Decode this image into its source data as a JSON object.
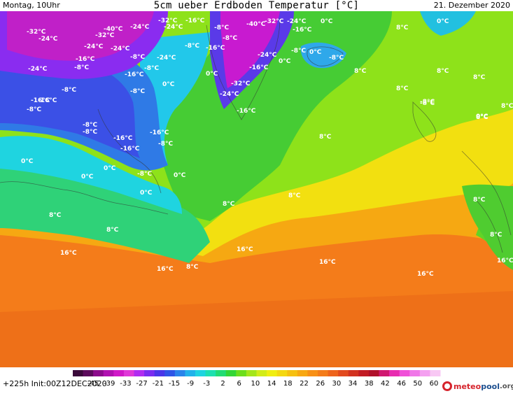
{
  "header": {
    "left": "Montag, 10Uhr",
    "center": "5cm ueber Erdboden Temperatur [°C]",
    "right": "21. Dezember 2020"
  },
  "footer": {
    "run_info": "+225h Init:00Z12DEC2020",
    "logo": {
      "part1": "meteo",
      "part2": "pool",
      "part3": ".org"
    }
  },
  "legend": {
    "ticks": [
      "-45",
      "-39",
      "-33",
      "-27",
      "-21",
      "-15",
      "-9",
      "-3",
      "2",
      "6",
      "10",
      "14",
      "18",
      "22",
      "26",
      "30",
      "34",
      "38",
      "42",
      "46",
      "50",
      "60"
    ],
    "colors": [
      "#3a0a3a",
      "#5c0b5c",
      "#8c0b8c",
      "#b010b0",
      "#d018c8",
      "#e038d8",
      "#b02cf0",
      "#7a2cf0",
      "#4a36e8",
      "#2f55e6",
      "#2a84ea",
      "#22b2ea",
      "#1fd4e0",
      "#1ee0b0",
      "#22dc74",
      "#33d636",
      "#6cde1c",
      "#a4e61a",
      "#d2ec18",
      "#f0ee10",
      "#f4d810",
      "#f6c010",
      "#f8a812",
      "#f89016",
      "#f47c1a",
      "#ee641c",
      "#e24a1e",
      "#d23220",
      "#c21c24",
      "#b0102a",
      "#d01870",
      "#e82cb0",
      "#f050d8",
      "#f078e8",
      "#f4a0f0",
      "#f8c8f4"
    ]
  },
  "map_labels": [
    {
      "text": "-32°C"
    },
    {
      "text": "-24°C"
    },
    {
      "text": "-40°C"
    },
    {
      "text": "-32°C"
    },
    {
      "text": "-24°C"
    },
    {
      "text": "-32°C"
    },
    {
      "text": "-16°C"
    },
    {
      "text": "-24°C"
    },
    {
      "text": "-8°C"
    },
    {
      "text": "-40°C"
    },
    {
      "text": "-32°C"
    },
    {
      "text": "-24°C"
    },
    {
      "text": "-16°C"
    },
    {
      "text": "0°C"
    },
    {
      "text": "8°C"
    },
    {
      "text": "0°C"
    },
    {
      "text": "-24°C"
    },
    {
      "text": "-24°C"
    },
    {
      "text": "-8°C"
    },
    {
      "text": "-16°C"
    },
    {
      "text": "-24°C"
    },
    {
      "text": "-8°C"
    },
    {
      "text": "-8°C"
    },
    {
      "text": "-24°C"
    },
    {
      "text": "-8°C"
    },
    {
      "text": "0°C"
    },
    {
      "text": "-8°C"
    },
    {
      "text": "0°C"
    },
    {
      "text": "-24°C"
    },
    {
      "text": "-8°C"
    },
    {
      "text": "-16°C"
    },
    {
      "text": "-8°C"
    },
    {
      "text": "-16°C"
    },
    {
      "text": "0°C"
    },
    {
      "text": "-16°C"
    },
    {
      "text": "8°C"
    },
    {
      "text": "8°C"
    },
    {
      "text": "8°C"
    },
    {
      "text": "-8°C"
    },
    {
      "text": "0°C"
    },
    {
      "text": "-32°C"
    },
    {
      "text": "-8°C"
    },
    {
      "text": "-24°C"
    },
    {
      "text": "-16°C"
    },
    {
      "text": "-8°C"
    },
    {
      "text": "8°C"
    },
    {
      "text": "-16°C"
    },
    {
      "text": "-8°C"
    },
    {
      "text": "-8°C"
    },
    {
      "text": "-16°C"
    },
    {
      "text": "-8°C"
    },
    {
      "text": "8°C"
    },
    {
      "text": "-8°C"
    },
    {
      "text": "0°C"
    },
    {
      "text": "-16°C"
    },
    {
      "text": "-16°C"
    },
    {
      "text": "-16°C"
    },
    {
      "text": "-8°C"
    },
    {
      "text": "8°C"
    },
    {
      "text": "0°C"
    },
    {
      "text": "0°C"
    },
    {
      "text": "-8°C"
    },
    {
      "text": "0°C"
    },
    {
      "text": "0°C"
    },
    {
      "text": "0°C"
    },
    {
      "text": "8°C"
    },
    {
      "text": "8°C"
    },
    {
      "text": "8°C"
    },
    {
      "text": "8°C"
    },
    {
      "text": "8°C"
    },
    {
      "text": "16°C"
    },
    {
      "text": "16°C"
    },
    {
      "text": "16°C"
    },
    {
      "text": "16°C"
    },
    {
      "text": "16°C"
    },
    {
      "text": "8°C"
    },
    {
      "text": "16°C"
    },
    {
      "text": "8°C"
    },
    {
      "text": "8°C"
    }
  ]
}
